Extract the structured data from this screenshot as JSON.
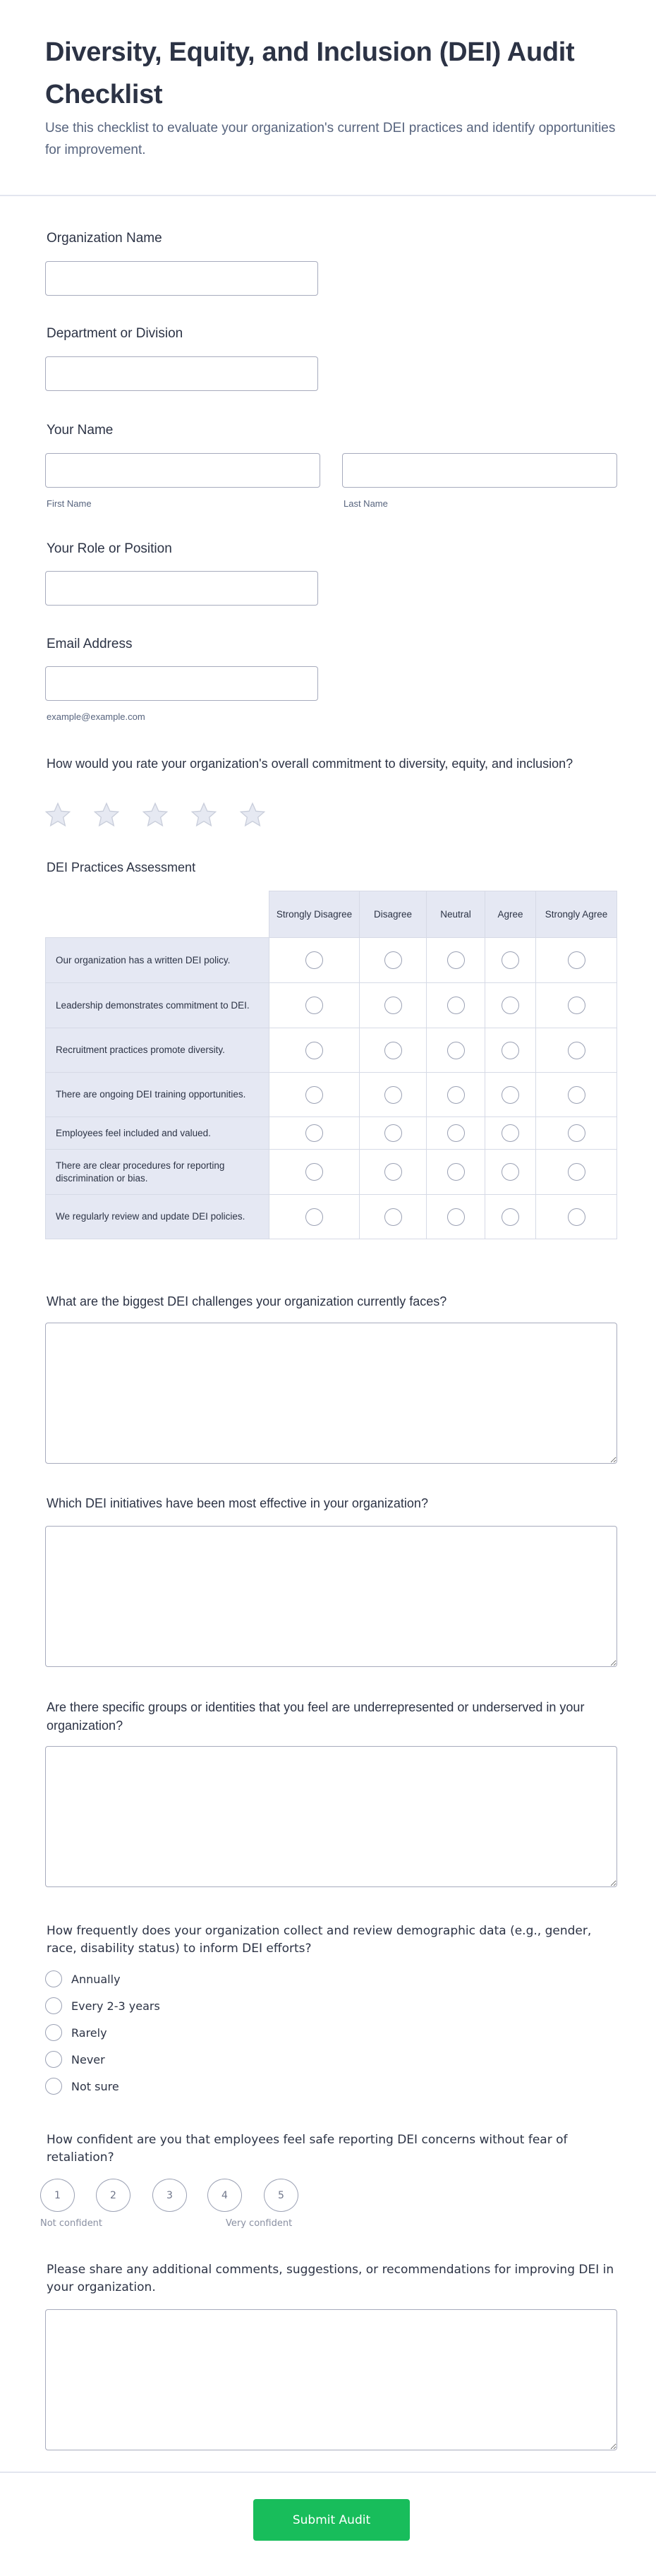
{
  "header": {
    "title": "Diversity, Equity, and Inclusion (DEI) Audit Checklist",
    "subtitle": "Use this checklist to evaluate your organization's current DEI practices and identify opportunities for improvement."
  },
  "fields": {
    "org": {
      "label": "Organization Name",
      "value": ""
    },
    "dept": {
      "label": "Department or Division",
      "value": ""
    },
    "name": {
      "label": "Your Name",
      "first_label": "First Name",
      "last_label": "Last Name",
      "first_value": "",
      "last_value": ""
    },
    "role": {
      "label": "Your Role or Position",
      "value": ""
    },
    "email": {
      "label": "Email Address",
      "value": "",
      "hint": "example@example.com"
    }
  },
  "rating": {
    "question": "How would you rate your organization's overall commitment to diversity, equity, and inclusion?",
    "max": 5,
    "value": 0,
    "icon": "star-icon"
  },
  "matrix": {
    "title": "DEI Practices Assessment",
    "columns": [
      "Strongly Disagree",
      "Disagree",
      "Neutral",
      "Agree",
      "Strongly Agree"
    ],
    "rows": [
      "Our organization has a written DEI policy.",
      "Leadership demonstrates commitment to DEI.",
      "Recruitment practices promote diversity.",
      "There are ongoing DEI training opportunities.",
      "Employees feel included and valued.",
      "There are clear procedures for reporting discrimination or bias.",
      "We regularly review and update DEI policies."
    ]
  },
  "text_questions": {
    "challenges": "What are the biggest DEI challenges your organization currently faces?",
    "initiatives": "Which DEI initiatives have been most effective in your organization?",
    "underrepresented": "Are there specific groups or identities that you feel are underrepresented or underserved in your organization?",
    "comments": "Please share any additional comments, suggestions, or recommendations for improving DEI in your organization."
  },
  "frequency": {
    "question": "How frequently does your organization collect and review demographic data (e.g., gender, race, disability status) to inform DEI efforts?",
    "options": [
      "Annually",
      "Every 2-3 years",
      "Rarely",
      "Never",
      "Not sure"
    ]
  },
  "confidence": {
    "question": "How confident are you that employees feel safe reporting DEI concerns without fear of retaliation?",
    "options": [
      "1",
      "2",
      "3",
      "4",
      "5"
    ],
    "min_label": "Not confident",
    "max_label": "Very confident"
  },
  "submit_label": "Submit Audit",
  "colors": {
    "accent": "#18bd5b",
    "text": "#2c3345",
    "matrix_header": "#e5e8f3"
  }
}
